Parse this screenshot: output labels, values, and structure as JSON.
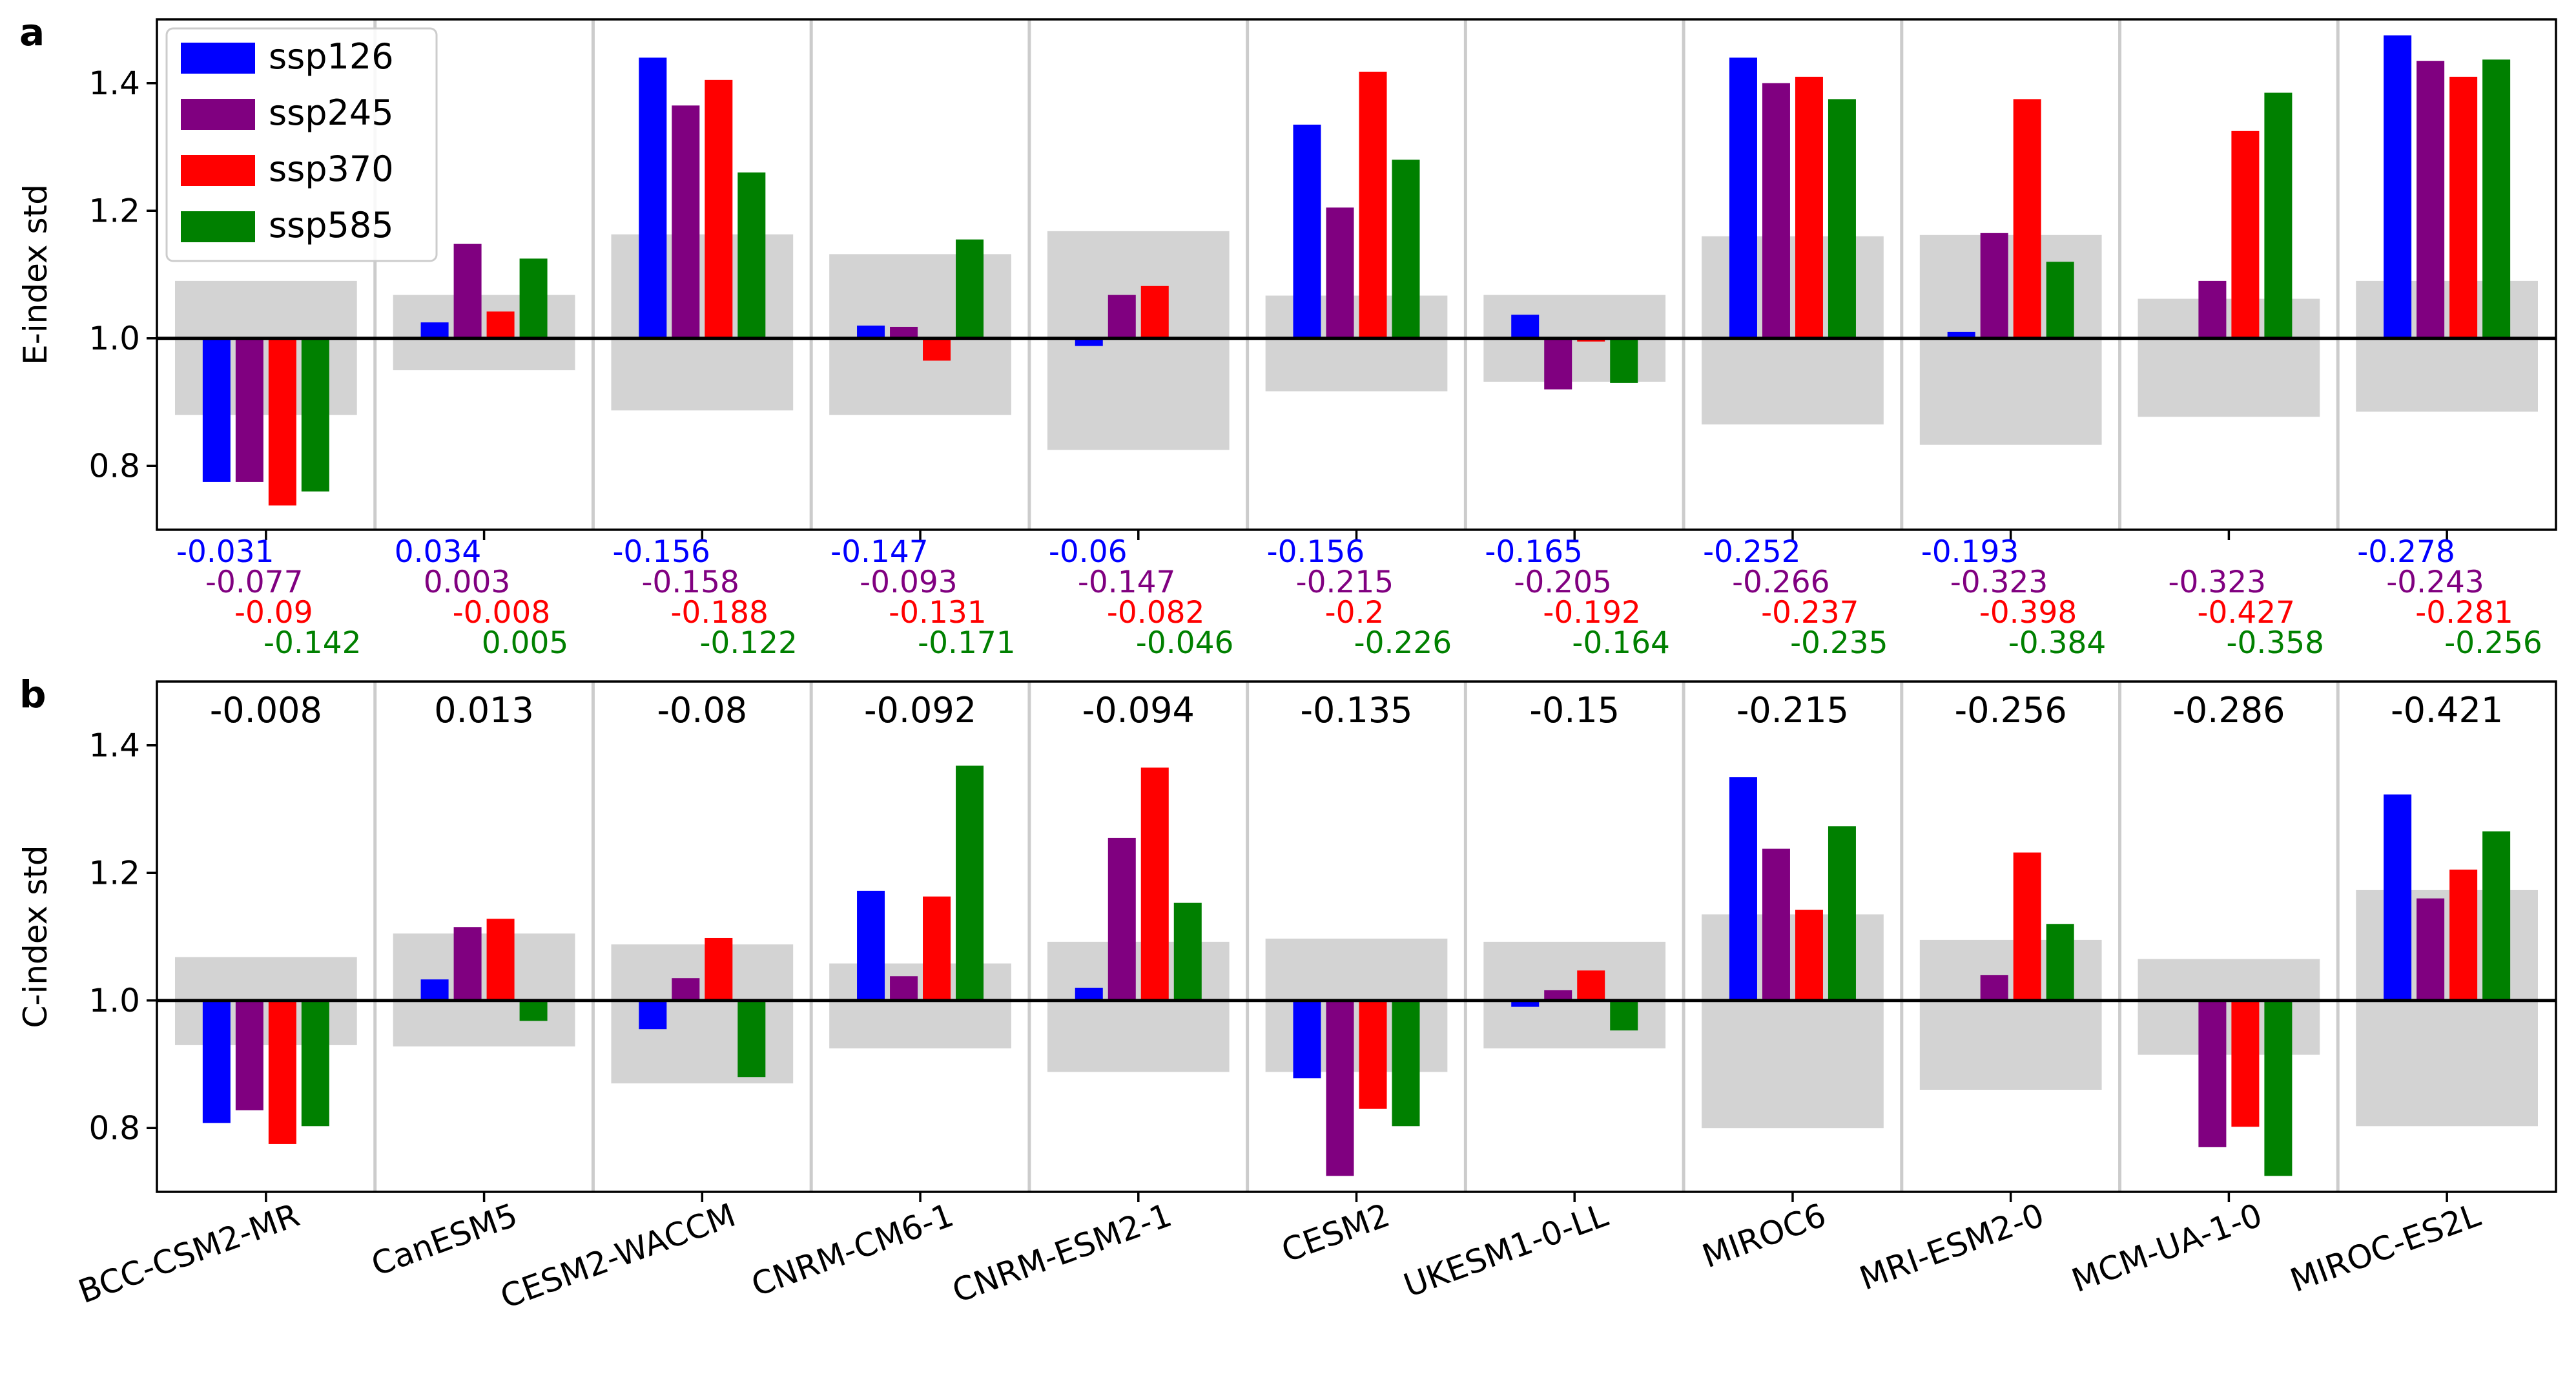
{
  "colors": {
    "ssp126": "#0000ff",
    "ssp245": "#800080",
    "ssp370": "#ff0000",
    "ssp585": "#008000",
    "band": "#d3d3d3",
    "separator": "#cccccc"
  },
  "chart_data": [
    {
      "type": "bar",
      "panel_label": "a",
      "ylabel": "E-index std",
      "ylim": [
        0.7,
        1.5
      ],
      "yticks": [
        "0.8",
        "1.0",
        "1.2",
        "1.4"
      ],
      "baseline": 1.0,
      "legend": {
        "placement": "top-left",
        "entries": [
          "ssp126",
          "ssp245",
          "ssp370",
          "ssp585"
        ]
      },
      "categories": [
        "BCC-CSM2-MR",
        "CanESM5",
        "CESM2-WACCM",
        "CNRM-CM6-1",
        "CNRM-ESM2-1",
        "CESM2",
        "UKESM1-0-LL",
        "MIROC6",
        "MRI-ESM2-0",
        "MCM-UA-1-0",
        "MIROC-ES2L"
      ],
      "series": [
        {
          "name": "ssp126",
          "values": [
            0.775,
            1.025,
            1.44,
            1.02,
            0.988,
            1.335,
            1.037,
            1.44,
            1.01,
            null,
            1.475
          ]
        },
        {
          "name": "ssp245",
          "values": [
            0.775,
            1.148,
            1.365,
            1.018,
            1.068,
            1.205,
            0.92,
            1.4,
            1.165,
            1.09,
            1.435
          ]
        },
        {
          "name": "ssp370",
          "values": [
            0.738,
            1.042,
            1.405,
            0.965,
            1.082,
            1.418,
            0.995,
            1.41,
            1.375,
            1.325,
            1.41
          ]
        },
        {
          "name": "ssp585",
          "values": [
            0.76,
            1.125,
            1.26,
            1.155,
            null,
            1.28,
            0.93,
            1.375,
            1.12,
            1.385,
            1.437
          ]
        }
      ],
      "bands": [
        [
          0.88,
          1.09
        ],
        [
          0.95,
          1.068
        ],
        [
          0.887,
          1.163
        ],
        [
          0.88,
          1.132
        ],
        [
          0.825,
          1.168
        ],
        [
          0.917,
          1.067
        ],
        [
          0.932,
          1.068
        ],
        [
          0.865,
          1.16
        ],
        [
          0.833,
          1.162
        ],
        [
          0.877,
          1.062
        ],
        [
          0.885,
          1.09
        ]
      ],
      "annotations": [
        [
          "-0.031",
          "-0.077",
          "-0.09",
          "-0.142"
        ],
        [
          "0.034",
          "0.003",
          "-0.008",
          "0.005"
        ],
        [
          "-0.156",
          "-0.158",
          "-0.188",
          "-0.122"
        ],
        [
          "-0.147",
          "-0.093",
          "-0.131",
          "-0.171"
        ],
        [
          "-0.06",
          "-0.147",
          "-0.082",
          "-0.046"
        ],
        [
          "-0.156",
          "-0.215",
          "-0.2",
          "-0.226"
        ],
        [
          "-0.165",
          "-0.205",
          "-0.192",
          "-0.164"
        ],
        [
          "-0.252",
          "-0.266",
          "-0.237",
          "-0.235"
        ],
        [
          "-0.193",
          "-0.323",
          "-0.398",
          "-0.384"
        ],
        [
          "",
          "-0.323",
          "-0.427",
          "-0.358"
        ],
        [
          "-0.278",
          "-0.243",
          "-0.281",
          "-0.256"
        ]
      ]
    },
    {
      "type": "bar",
      "panel_label": "b",
      "ylabel": "C-index std",
      "ylim": [
        0.7,
        1.5
      ],
      "yticks": [
        "0.8",
        "1.0",
        "1.2",
        "1.4"
      ],
      "baseline": 1.0,
      "categories": [
        "BCC-CSM2-MR",
        "CanESM5",
        "CESM2-WACCM",
        "CNRM-CM6-1",
        "CNRM-ESM2-1",
        "CESM2",
        "UKESM1-0-LL",
        "MIROC6",
        "MRI-ESM2-0",
        "MCM-UA-1-0",
        "MIROC-ES2L"
      ],
      "series": [
        {
          "name": "ssp126",
          "values": [
            0.808,
            1.033,
            0.955,
            1.172,
            1.02,
            0.878,
            0.99,
            1.35,
            null,
            null,
            1.323
          ]
        },
        {
          "name": "ssp245",
          "values": [
            0.828,
            1.115,
            1.035,
            1.038,
            1.255,
            0.725,
            1.016,
            1.238,
            1.04,
            0.77,
            1.16
          ]
        },
        {
          "name": "ssp370",
          "values": [
            0.775,
            1.128,
            1.098,
            1.163,
            1.365,
            0.83,
            1.047,
            1.142,
            1.232,
            0.802,
            1.205
          ]
        },
        {
          "name": "ssp585",
          "values": [
            0.803,
            0.968,
            0.88,
            1.368,
            1.153,
            0.803,
            0.953,
            1.273,
            1.12,
            0.725,
            1.265
          ]
        }
      ],
      "bands": [
        [
          0.93,
          1.068
        ],
        [
          0.928,
          1.105
        ],
        [
          0.87,
          1.088
        ],
        [
          0.925,
          1.058
        ],
        [
          0.888,
          1.092
        ],
        [
          0.888,
          1.097
        ],
        [
          0.925,
          1.092
        ],
        [
          0.8,
          1.135
        ],
        [
          0.86,
          1.095
        ],
        [
          0.915,
          1.065
        ],
        [
          0.803,
          1.173
        ]
      ],
      "annotations": [
        "-0.008",
        "0.013",
        "-0.08",
        "-0.092",
        "-0.094",
        "-0.135",
        "-0.15",
        "-0.215",
        "-0.256",
        "-0.286",
        "-0.421"
      ]
    }
  ]
}
